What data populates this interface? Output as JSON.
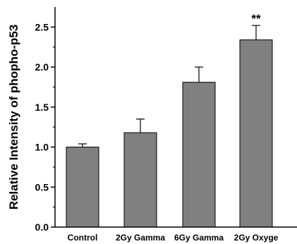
{
  "chart_data": {
    "type": "bar",
    "title": "",
    "xlabel": "",
    "ylabel": "Relative Intensity of phopho-p53",
    "categories": [
      "Control",
      "2Gy Gamma",
      "6Gy Gamma",
      "2Gy Oxyge"
    ],
    "values": [
      1.0,
      1.18,
      1.81,
      2.34
    ],
    "errors": [
      0.04,
      0.17,
      0.19,
      0.18
    ],
    "annotations": [
      {
        "category_index": 3,
        "text": "**"
      }
    ],
    "ylim": [
      0,
      2.75
    ],
    "yticks": [
      "0.0",
      "0.5",
      "1.0",
      "1.5",
      "2.0",
      "2.5"
    ],
    "grid": false,
    "colors": {
      "bar": "#808080",
      "bar_stroke": "#000000",
      "axis": "#000000"
    }
  }
}
